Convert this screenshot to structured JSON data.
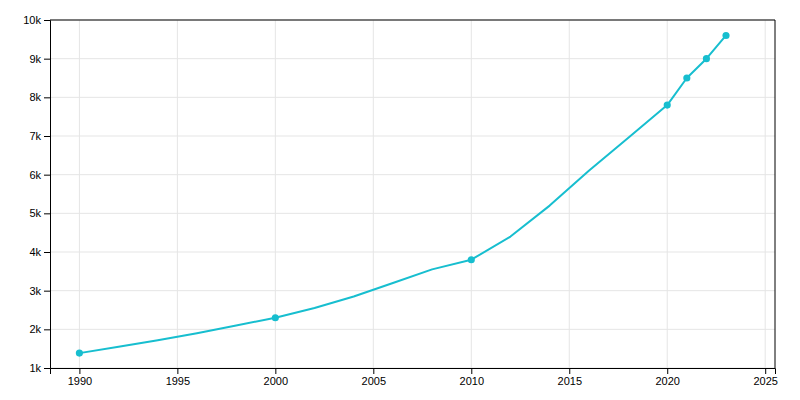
{
  "chart_data": {
    "type": "line",
    "x": [
      1990,
      1992,
      1994,
      1996,
      1998,
      2000,
      2002,
      2004,
      2006,
      2008,
      2010,
      2012,
      2014,
      2016,
      2018,
      2020,
      2021,
      2022,
      2023
    ],
    "series": [
      {
        "color": "#17becf",
        "values": [
          1385,
          1550,
          1720,
          1900,
          2100,
          2300,
          2550,
          2850,
          3200,
          3550,
          3800,
          4400,
          5200,
          6100,
          6950,
          7800,
          8500,
          9000,
          9600
        ]
      },
      {
        "type": "scatter",
        "marker": "circle",
        "color": "#17becf",
        "values": [
          1385,
          null,
          null,
          null,
          null,
          2300,
          null,
          null,
          null,
          null,
          3800,
          null,
          null,
          null,
          null,
          7800,
          8500,
          9000,
          9600
        ]
      }
    ],
    "xlim": [
      1988.5,
      2025.5
    ],
    "xticks": [
      1990,
      1995,
      2000,
      2005,
      2010,
      2015,
      2020,
      2025
    ],
    "ylim": [
      1000,
      10000
    ],
    "yticks": [
      {
        "value": 1000,
        "label": "1k"
      },
      {
        "value": 2000,
        "label": "2k"
      },
      {
        "value": 3000,
        "label": "3k"
      },
      {
        "value": 4000,
        "label": "4k"
      },
      {
        "value": 5000,
        "label": "5k"
      },
      {
        "value": 6000,
        "label": "6k"
      },
      {
        "value": 7000,
        "label": "7k"
      },
      {
        "value": 8000,
        "label": "8k"
      },
      {
        "value": 9000,
        "label": "9k"
      },
      {
        "value": 10000,
        "label": "10k"
      }
    ],
    "grid": true
  }
}
